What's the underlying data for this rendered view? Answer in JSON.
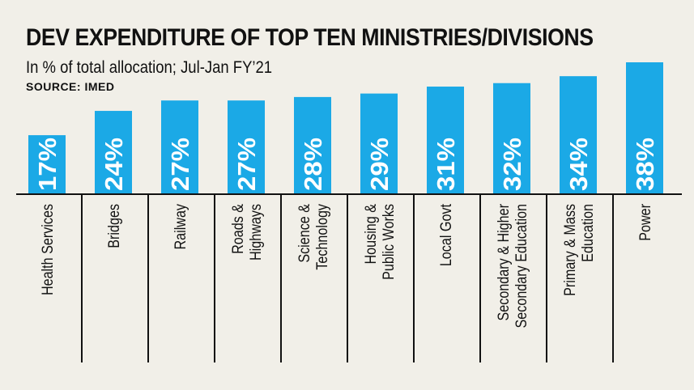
{
  "title": "DEV EXPENDITURE OF TOP TEN MINISTRIES/DIVISIONS",
  "subtitle": "In % of total allocation; Jul-Jan FY’21",
  "source": "SOURCE: IMED",
  "colors": {
    "bar": "#1ba9e6",
    "background": "#f1efe8",
    "text": "#111111"
  },
  "chart_data": {
    "type": "bar",
    "title": "DEV EXPENDITURE OF TOP TEN MINISTRIES/DIVISIONS",
    "subtitle": "In % of total allocation; Jul-Jan FY’21",
    "categories": [
      [
        "Health Services"
      ],
      [
        "Bridges"
      ],
      [
        "Railway"
      ],
      [
        "Roads &",
        "Highways"
      ],
      [
        "Science &",
        "Technology"
      ],
      [
        "Housing &",
        "Public Works"
      ],
      [
        "Local Govt"
      ],
      [
        "Secondary & Higher",
        "Secondary Education"
      ],
      [
        "Primary & Mass",
        "Education"
      ],
      [
        "Power"
      ]
    ],
    "values": [
      17,
      24,
      27,
      27,
      28,
      29,
      31,
      32,
      34,
      38
    ],
    "value_labels": [
      "17%",
      "24%",
      "27%",
      "27%",
      "28%",
      "29%",
      "31%",
      "32%",
      "34%",
      "38%"
    ],
    "unit": "%",
    "ylim": [
      0,
      38
    ],
    "grid": false,
    "legend": "none"
  }
}
